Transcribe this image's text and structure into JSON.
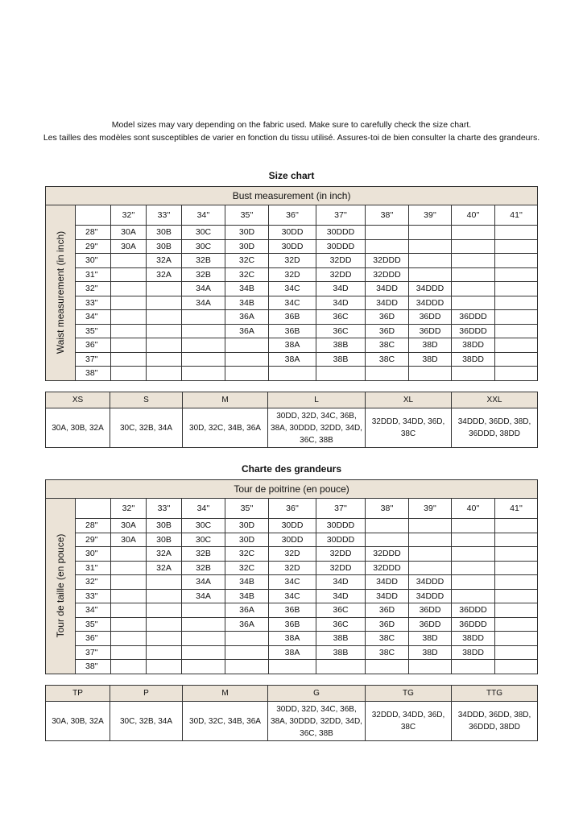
{
  "intro": {
    "line1": "Model sizes may vary depending on the fabric used. Make sure to carefully check the size chart.",
    "line2": "Les tailles des modèles sont susceptibles de varier en fonction du tissu utilisé. Assures-toi de bien consulter la charte des grandeurs."
  },
  "colors": {
    "header_bg": "#ebe3d7",
    "border": "#333333"
  },
  "charts": [
    {
      "title": "Size chart",
      "bust_label": "Bust measurement (in inch)",
      "waist_label": "Waist measurement (in inch)",
      "bust": [
        "32''",
        "33''",
        "34''",
        "35''",
        "36''",
        "37''",
        "38''",
        "39''",
        "40''",
        "41''"
      ],
      "rows": [
        {
          "waist": "28''",
          "cells": [
            "30A",
            "30B",
            "30C",
            "30D",
            "30DD",
            "30DDD",
            "",
            "",
            "",
            ""
          ]
        },
        {
          "waist": "29''",
          "cells": [
            "30A",
            "30B",
            "30C",
            "30D",
            "30DD",
            "30DDD",
            "",
            "",
            "",
            ""
          ]
        },
        {
          "waist": "30''",
          "cells": [
            "",
            "32A",
            "32B",
            "32C",
            "32D",
            "32DD",
            "32DDD",
            "",
            "",
            ""
          ]
        },
        {
          "waist": "31''",
          "cells": [
            "",
            "32A",
            "32B",
            "32C",
            "32D",
            "32DD",
            "32DDD",
            "",
            "",
            ""
          ]
        },
        {
          "waist": "32''",
          "cells": [
            "",
            "",
            "34A",
            "34B",
            "34C",
            "34D",
            "34DD",
            "34DDD",
            "",
            ""
          ]
        },
        {
          "waist": "33''",
          "cells": [
            "",
            "",
            "34A",
            "34B",
            "34C",
            "34D",
            "34DD",
            "34DDD",
            "",
            ""
          ]
        },
        {
          "waist": "34''",
          "cells": [
            "",
            "",
            "",
            "36A",
            "36B",
            "36C",
            "36D",
            "36DD",
            "36DDD",
            ""
          ]
        },
        {
          "waist": "35''",
          "cells": [
            "",
            "",
            "",
            "36A",
            "36B",
            "36C",
            "36D",
            "36DD",
            "36DDD",
            ""
          ]
        },
        {
          "waist": "36''",
          "cells": [
            "",
            "",
            "",
            "",
            "38A",
            "38B",
            "38C",
            "38D",
            "38DD",
            ""
          ]
        },
        {
          "waist": "37''",
          "cells": [
            "",
            "",
            "",
            "",
            "38A",
            "38B",
            "38C",
            "38D",
            "38DD",
            ""
          ]
        },
        {
          "waist": "38''",
          "cells": [
            "",
            "",
            "",
            "",
            "",
            "",
            "",
            "",
            "",
            ""
          ]
        }
      ],
      "sizes": [
        {
          "label": "XS",
          "values": "30A, 30B, 32A"
        },
        {
          "label": "S",
          "values": "30C, 32B, 34A"
        },
        {
          "label": "M",
          "values": "30D, 32C, 34B, 36A"
        },
        {
          "label": "L",
          "values": "30DD, 32D, 34C, 36B, 38A, 30DDD, 32DD, 34D, 36C, 38B"
        },
        {
          "label": "XL",
          "values": "32DDD, 34DD, 36D, 38C"
        },
        {
          "label": "XXL",
          "values": "34DDD, 36DD, 38D, 36DDD, 38DD"
        }
      ]
    },
    {
      "title": "Charte des grandeurs",
      "bust_label": "Tour de poitrine (en pouce)",
      "waist_label": "Tour de taille (en pouce)",
      "bust": [
        "32''",
        "33''",
        "34''",
        "35''",
        "36''",
        "37''",
        "38''",
        "39''",
        "40''",
        "41''"
      ],
      "rows": [
        {
          "waist": "28''",
          "cells": [
            "30A",
            "30B",
            "30C",
            "30D",
            "30DD",
            "30DDD",
            "",
            "",
            "",
            ""
          ]
        },
        {
          "waist": "29''",
          "cells": [
            "30A",
            "30B",
            "30C",
            "30D",
            "30DD",
            "30DDD",
            "",
            "",
            "",
            ""
          ]
        },
        {
          "waist": "30''",
          "cells": [
            "",
            "32A",
            "32B",
            "32C",
            "32D",
            "32DD",
            "32DDD",
            "",
            "",
            ""
          ]
        },
        {
          "waist": "31''",
          "cells": [
            "",
            "32A",
            "32B",
            "32C",
            "32D",
            "32DD",
            "32DDD",
            "",
            "",
            ""
          ]
        },
        {
          "waist": "32''",
          "cells": [
            "",
            "",
            "34A",
            "34B",
            "34C",
            "34D",
            "34DD",
            "34DDD",
            "",
            ""
          ]
        },
        {
          "waist": "33''",
          "cells": [
            "",
            "",
            "34A",
            "34B",
            "34C",
            "34D",
            "34DD",
            "34DDD",
            "",
            ""
          ]
        },
        {
          "waist": "34''",
          "cells": [
            "",
            "",
            "",
            "36A",
            "36B",
            "36C",
            "36D",
            "36DD",
            "36DDD",
            ""
          ]
        },
        {
          "waist": "35''",
          "cells": [
            "",
            "",
            "",
            "36A",
            "36B",
            "36C",
            "36D",
            "36DD",
            "36DDD",
            ""
          ]
        },
        {
          "waist": "36''",
          "cells": [
            "",
            "",
            "",
            "",
            "38A",
            "38B",
            "38C",
            "38D",
            "38DD",
            ""
          ]
        },
        {
          "waist": "37''",
          "cells": [
            "",
            "",
            "",
            "",
            "38A",
            "38B",
            "38C",
            "38D",
            "38DD",
            ""
          ]
        },
        {
          "waist": "38''",
          "cells": [
            "",
            "",
            "",
            "",
            "",
            "",
            "",
            "",
            "",
            ""
          ]
        }
      ],
      "sizes": [
        {
          "label": "TP",
          "values": "30A, 30B, 32A"
        },
        {
          "label": "P",
          "values": "30C, 32B, 34A"
        },
        {
          "label": "M",
          "values": "30D, 32C, 34B, 36A"
        },
        {
          "label": "G",
          "values": "30DD, 32D, 34C, 36B, 38A, 30DDD, 32DD, 34D, 36C, 38B"
        },
        {
          "label": "TG",
          "values": "32DDD, 34DD, 36D, 38C"
        },
        {
          "label": "TTG",
          "values": "34DDD, 36DD, 38D, 36DDD, 38DD"
        }
      ]
    }
  ]
}
